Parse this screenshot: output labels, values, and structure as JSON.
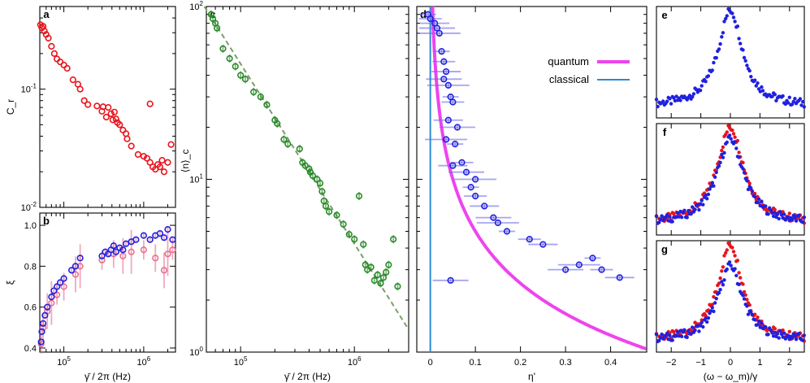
{
  "chart_data": [
    {
      "panel": "a",
      "type": "scatter",
      "title": "a",
      "xlabel": "",
      "ylabel": "C_r",
      "xscale": "log",
      "yscale": "log",
      "xlim": [
        50000,
        2500000
      ],
      "ylim": [
        0.01,
        0.5
      ],
      "yticks": [
        {
          "v": 0.1,
          "label": "10^-1"
        },
        {
          "v": 0.01,
          "label": "10^-2"
        }
      ],
      "xticks": [],
      "series": [
        {
          "name": "C_r",
          "color": "#e8141c",
          "x": [
            51000,
            53000,
            55000,
            57000,
            60000,
            64000,
            70000,
            76000,
            82000,
            90000,
            100000,
            110000,
            130000,
            150000,
            160000,
            180000,
            200000,
            260000,
            300000,
            310000,
            340000,
            360000,
            390000,
            410000,
            430000,
            450000,
            470000,
            500000,
            550000,
            600000,
            620000,
            700000,
            850000,
            1000000,
            1100000,
            1200000,
            1300000,
            1400000,
            1500000,
            1600000,
            1700000,
            1800000,
            2000000,
            2200000,
            1200000
          ],
          "y": [
            0.35,
            0.33,
            0.34,
            0.31,
            0.29,
            0.27,
            0.23,
            0.2,
            0.18,
            0.17,
            0.16,
            0.15,
            0.12,
            0.11,
            0.1,
            0.08,
            0.074,
            0.072,
            0.065,
            0.071,
            0.058,
            0.07,
            0.062,
            0.055,
            0.064,
            0.056,
            0.052,
            0.05,
            0.045,
            0.042,
            0.038,
            0.033,
            0.028,
            0.027,
            0.026,
            0.024,
            0.022,
            0.021,
            0.023,
            0.022,
            0.025,
            0.02,
            0.024,
            0.034,
            0.075
          ]
        }
      ]
    },
    {
      "panel": "b",
      "type": "scatter",
      "title": "b",
      "xlabel": "γ̄ / 2π (Hz)",
      "ylabel": "ξ",
      "xscale": "log",
      "xlim": [
        50000,
        2500000
      ],
      "ylim": [
        0.38,
        1.06
      ],
      "yticks": [
        {
          "v": 0.4,
          "label": "0.4"
        },
        {
          "v": 0.6,
          "label": "0.6"
        },
        {
          "v": 0.8,
          "label": "0.8"
        },
        {
          "v": 1.0,
          "label": "1.0"
        }
      ],
      "xticks": [
        {
          "v": 100000,
          "label": "10^5"
        },
        {
          "v": 1000000,
          "label": "10^6"
        }
      ],
      "series": [
        {
          "name": "ξ (blue)",
          "color": "#2020e0",
          "x": [
            52000,
            53000,
            55000,
            58000,
            62000,
            70000,
            75000,
            82000,
            90000,
            100000,
            125000,
            140000,
            160000,
            300000,
            330000,
            360000,
            390000,
            420000,
            450000,
            500000,
            550000,
            600000,
            700000,
            800000,
            1000000,
            1200000,
            1400000,
            1600000,
            1800000,
            2000000,
            2300000
          ],
          "y": [
            0.43,
            0.48,
            0.52,
            0.56,
            0.6,
            0.65,
            0.68,
            0.7,
            0.72,
            0.74,
            0.78,
            0.8,
            0.84,
            0.85,
            0.87,
            0.86,
            0.88,
            0.9,
            0.87,
            0.89,
            0.88,
            0.91,
            0.92,
            0.93,
            0.95,
            0.93,
            0.95,
            0.96,
            0.94,
            0.98,
            0.93
          ]
        },
        {
          "name": "ξ (pink)",
          "color": "#e87090",
          "x": [
            52000,
            55000,
            62000,
            70000,
            82000,
            100000,
            140000,
            160000,
            300000,
            420000,
            550000,
            700000,
            1000000,
            1400000,
            1800000,
            2000000,
            2300000
          ],
          "y": [
            0.42,
            0.5,
            0.58,
            0.62,
            0.66,
            0.7,
            0.76,
            0.8,
            0.83,
            0.86,
            0.85,
            0.87,
            0.88,
            0.84,
            0.78,
            0.86,
            0.88
          ]
        }
      ]
    },
    {
      "panel": "c",
      "type": "scatter",
      "title": "c",
      "xlabel": "γ̄ / 2π (Hz)",
      "ylabel": "⟨n⟩_c",
      "xscale": "log",
      "yscale": "log",
      "xlim": [
        50000,
        3000000
      ],
      "ylim": [
        1,
        100
      ],
      "yticks": [
        {
          "v": 1,
          "label": "10^0"
        },
        {
          "v": 10,
          "label": "10^1"
        },
        {
          "v": 100,
          "label": "10^2"
        }
      ],
      "xticks": [
        {
          "v": 100000,
          "label": "10^5"
        },
        {
          "v": 1000000,
          "label": "10^6"
        }
      ],
      "fit_line": {
        "style": "dashed",
        "color": "#7a9e6a",
        "x": [
          48000,
          3000000
        ],
        "y": [
          100,
          1.35
        ]
      },
      "series": [
        {
          "name": "⟨n⟩_c",
          "color": "#2a8a2a",
          "x": [
            55000,
            57000,
            60000,
            62000,
            70000,
            80000,
            90000,
            100000,
            110000,
            130000,
            150000,
            170000,
            200000,
            210000,
            240000,
            260000,
            330000,
            350000,
            370000,
            400000,
            410000,
            430000,
            470000,
            500000,
            520000,
            540000,
            560000,
            600000,
            700000,
            800000,
            900000,
            1000000,
            1100000,
            1200000,
            1250000,
            1300000,
            1400000,
            1500000,
            1600000,
            1700000,
            1800000,
            1900000,
            2000000,
            2200000,
            2400000
          ],
          "y": [
            90,
            85,
            80,
            75,
            57,
            50,
            45,
            40,
            38,
            32,
            30,
            27,
            22,
            21,
            17,
            16,
            15,
            12.5,
            12,
            11.5,
            11,
            10.5,
            10,
            9.5,
            8.5,
            7.5,
            7,
            6.5,
            6.2,
            5.5,
            4.8,
            4.5,
            8,
            4.2,
            3.2,
            3,
            3.1,
            2.6,
            2.8,
            2.5,
            2.7,
            2.9,
            3.2,
            4.5,
            2.4
          ]
        }
      ]
    },
    {
      "panel": "d",
      "type": "scatter",
      "title": "d",
      "xlabel": "η'",
      "ylabel": "",
      "xlim": [
        -0.03,
        0.48
      ],
      "ylim": [
        1,
        100
      ],
      "yscale": "log",
      "xticks": [
        {
          "v": 0,
          "label": "0"
        },
        {
          "v": 0.1,
          "label": "0.1"
        },
        {
          "v": 0.2,
          "label": "0.2"
        },
        {
          "v": 0.3,
          "label": "0.3"
        },
        {
          "v": 0.4,
          "label": "0.4"
        }
      ],
      "legend": {
        "position": "top-right",
        "entries": [
          {
            "label": "quantum",
            "color": "#ee44ee"
          },
          {
            "label": "classical",
            "color": "#2a8ad4"
          }
        ]
      },
      "quantum_curve": "⟨n⟩ ≈ 1/(2η')",
      "classical_x": 0.0,
      "series": [
        {
          "name": "data",
          "color": "#2020e0",
          "x": [
            -0.005,
            0.0,
            0.01,
            0.015,
            0.02,
            0.025,
            0.03,
            0.035,
            0.03,
            0.04,
            0.045,
            0.05,
            0.04,
            0.06,
            0.035,
            0.055,
            0.07,
            0.05,
            0.08,
            0.1,
            0.09,
            0.1,
            0.12,
            0.14,
            0.15,
            0.17,
            0.22,
            0.25,
            0.3,
            0.33,
            0.36,
            0.38,
            0.42,
            0.045
          ],
          "y": [
            90,
            85,
            80,
            75,
            70,
            55,
            48,
            42,
            38,
            35,
            30,
            28,
            22,
            20,
            17,
            16,
            12.5,
            12,
            11,
            10,
            9,
            8,
            7,
            6,
            5.6,
            5,
            4.5,
            4.2,
            3,
            3.2,
            3.5,
            3,
            2.7,
            2.6
          ]
        }
      ]
    },
    {
      "panel": "e",
      "type": "line",
      "title": "e",
      "xlabel": "(ω − ω_m)/γ",
      "xlim": [
        -2.5,
        2.5
      ],
      "series": [
        {
          "name": "spectrum",
          "color": "#2020e0",
          "shape": "lorentzian",
          "width": 0.5,
          "peak": 1.0
        }
      ]
    },
    {
      "panel": "f",
      "type": "line",
      "title": "f",
      "xlabel": "(ω − ω_m)/γ",
      "xlim": [
        -2.5,
        2.5
      ],
      "series": [
        {
          "name": "red",
          "color": "#e8141c",
          "peak": 1.0,
          "width": 0.55
        },
        {
          "name": "blue",
          "color": "#2020e0",
          "peak": 0.88,
          "width": 0.55
        }
      ]
    },
    {
      "panel": "g",
      "type": "line",
      "title": "g",
      "xlabel": "(ω − ω_m)/γ",
      "xlim": [
        -2.5,
        2.5
      ],
      "xticks": [
        {
          "v": -2,
          "label": "−2"
        },
        {
          "v": -1,
          "label": "−1"
        },
        {
          "v": 0,
          "label": "0"
        },
        {
          "v": 1,
          "label": "1"
        },
        {
          "v": 2,
          "label": "2"
        }
      ],
      "series": [
        {
          "name": "red",
          "color": "#e8141c",
          "peak": 1.0,
          "width": 0.5
        },
        {
          "name": "blue",
          "color": "#2020e0",
          "peak": 0.78,
          "width": 0.5
        }
      ]
    }
  ]
}
